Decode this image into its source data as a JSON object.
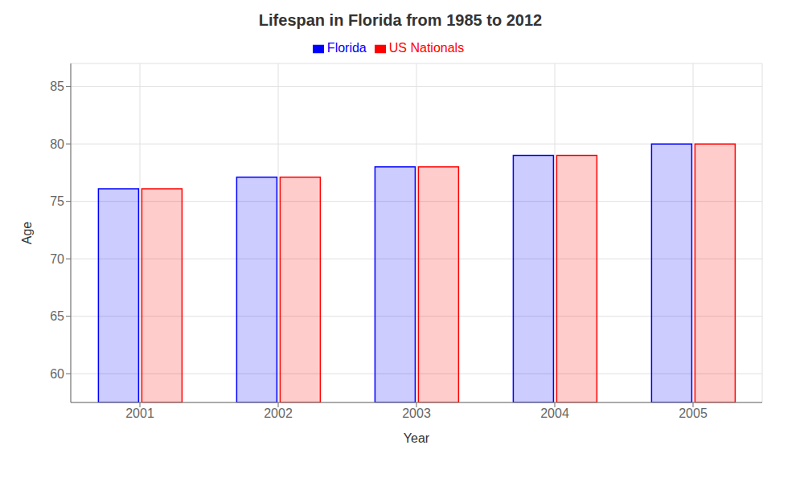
{
  "chart_data": {
    "type": "bar",
    "title": "Lifespan in Florida from 1985 to 2012",
    "xlabel": "Year",
    "ylabel": "Age",
    "categories": [
      "2001",
      "2002",
      "2003",
      "2004",
      "2005"
    ],
    "series": [
      {
        "name": "Florida",
        "color": "#0000ff",
        "values": [
          76.1,
          77.1,
          78.0,
          79.0,
          80.0
        ]
      },
      {
        "name": "US Nationals",
        "color": "#ff0000",
        "values": [
          76.1,
          77.1,
          78.0,
          79.0,
          80.0
        ]
      }
    ],
    "ylim": [
      57.5,
      87
    ],
    "yticks": [
      60,
      65,
      70,
      75,
      80,
      85
    ],
    "grid": true,
    "legend": "top"
  }
}
